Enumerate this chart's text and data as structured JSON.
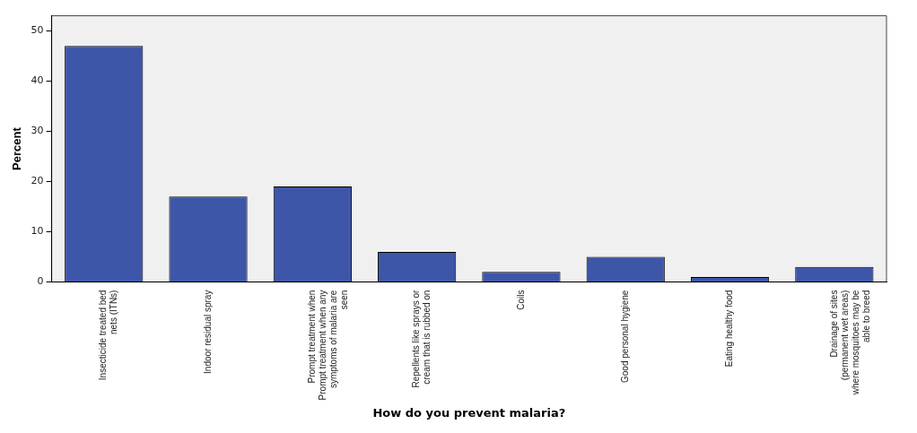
{
  "chart_data": {
    "type": "bar",
    "xlabel": "How do you prevent malaria?",
    "ylabel": "Percent",
    "categories": [
      "Insecticide treated bed nets (ITNs)",
      "Indoor residual spray",
      "Prompt treatment when Prompt treatment when any symptoms of malaria are seen",
      "Repellents like sprays or cream that is rubbed on",
      "Coils",
      "Good personal hygiene",
      "Eating healthy food",
      "Drainage of sites (permanent wet areas) where mosquitoes may be able to breed"
    ],
    "values": [
      47,
      17,
      19,
      6,
      2,
      5,
      1,
      3
    ],
    "color": "#3e56a8",
    "ylim": [
      0,
      53
    ],
    "yticks": [
      0,
      10,
      20,
      30,
      40,
      50
    ],
    "grid": false,
    "legend": false
  }
}
